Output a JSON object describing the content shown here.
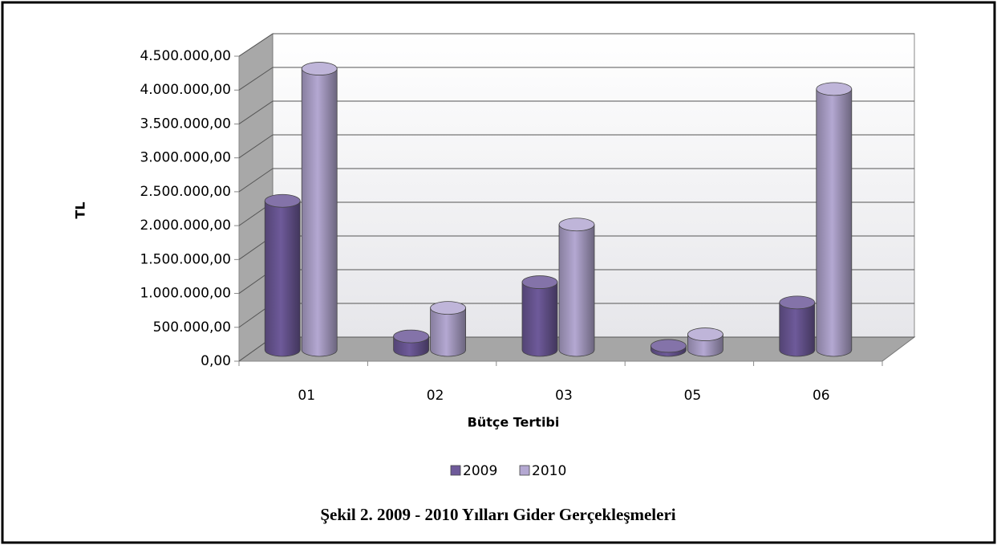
{
  "chart_data": {
    "type": "bar3d",
    "caption": "Şekil 2. 2009 - 2010 Yılları Gider Gerçekleşmeleri",
    "x_label": "Bütçe Tertibi",
    "y_label": "TL",
    "categories": [
      "01",
      "02",
      "03",
      "05",
      "06"
    ],
    "series": [
      {
        "name": "2009",
        "color": "#6e5a9a",
        "values": [
          2200000,
          200000,
          1000000,
          60000,
          700000
        ]
      },
      {
        "name": "2010",
        "color": "#b4a8d2",
        "values": [
          4150000,
          620000,
          1850000,
          230000,
          3850000
        ]
      }
    ],
    "ylim": [
      0,
      4500000
    ],
    "yticks": [
      {
        "value": 0,
        "label": "0,00"
      },
      {
        "value": 500000,
        "label": "500.000,00"
      },
      {
        "value": 1000000,
        "label": "1.000.000,00"
      },
      {
        "value": 1500000,
        "label": "1.500.000,00"
      },
      {
        "value": 2000000,
        "label": "2.000.000,00"
      },
      {
        "value": 2500000,
        "label": "2.500.000,00"
      },
      {
        "value": 3000000,
        "label": "3.000.000,00"
      },
      {
        "value": 3500000,
        "label": "3.500.000,00"
      },
      {
        "value": 4000000,
        "label": "4.000.000,00"
      },
      {
        "value": 4500000,
        "label": "4.500.000,00"
      }
    ],
    "grid": true,
    "legend": "bottom"
  }
}
